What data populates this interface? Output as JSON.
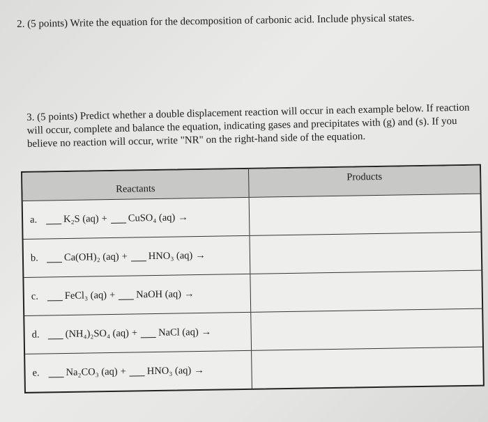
{
  "question2": "2. (5 points) Write the equation for the decomposition of carbonic acid. Include physical states.",
  "question3": {
    "text": "3. (5 points) Predict whether a double displacement reaction will occur in each example below. If reaction will occur, complete and balance the equation, indicating gases and precipitates with (g) and (s). If you believe no reaction will occur, write \"NR\" on the right-hand side of the equation."
  },
  "table": {
    "headers": {
      "reactants": "Reactants",
      "products": "Products"
    },
    "rows": [
      {
        "label": "a.",
        "r1": "K₂S (aq)",
        "plus": "+",
        "r2": "CuSO₄ (aq)",
        "arrow": "→",
        "products": ""
      },
      {
        "label": "b.",
        "r1": "Ca(OH)₂ (aq)",
        "plus": "+",
        "r2": "HNO₃ (aq)",
        "arrow": "→",
        "products": ""
      },
      {
        "label": "c.",
        "r1": "FeCl₃ (aq)",
        "plus": "+",
        "r2": "NaOH (aq)",
        "arrow": "→",
        "products": ""
      },
      {
        "label": "d.",
        "r1": "(NH₄)₂SO₄ (aq)",
        "plus": "+",
        "r2": "NaCl (aq)",
        "arrow": "→",
        "products": ""
      },
      {
        "label": "e.",
        "r1": "Na₂CO₃ (aq)",
        "plus": "+",
        "r2": "HNO₃ (aq)",
        "arrow": "→",
        "products": ""
      }
    ]
  }
}
